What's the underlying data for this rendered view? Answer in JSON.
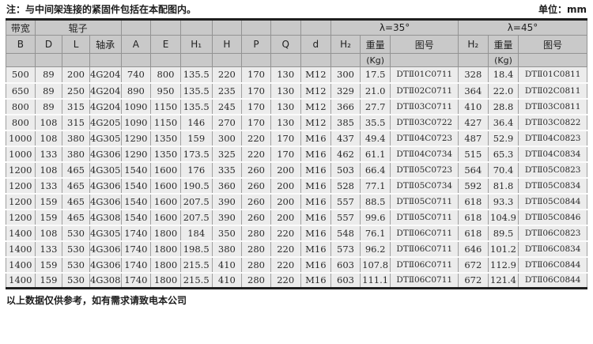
{
  "note_top": "注：与中间架连接的紧固件包括在本配图内。",
  "unit_label": "单位：mm",
  "footer_note": "以上数据仅供参考，如有需求请致电本公司",
  "table": {
    "group_headers": {
      "bandwidth": "带宽",
      "roller": "辊子",
      "lambda35": "λ=35°",
      "lambda45": "λ=45°"
    },
    "columns": [
      "B",
      "D",
      "L",
      "轴承",
      "A",
      "E",
      "H₁",
      "H",
      "P",
      "Q",
      "d",
      "H₂",
      "重量",
      "图号",
      "H₂",
      "重量",
      "图号"
    ],
    "kg_label": "(Kg)",
    "rows": [
      [
        "500",
        "89",
        "200",
        "4G204",
        "740",
        "800",
        "135.5",
        "220",
        "170",
        "130",
        "M12",
        "300",
        "17.5",
        "DTⅡ01C0711",
        "328",
        "18.4",
        "DTⅡ01C0811"
      ],
      [
        "650",
        "89",
        "250",
        "4G204",
        "890",
        "950",
        "135.5",
        "235",
        "170",
        "130",
        "M12",
        "329",
        "21.0",
        "DTⅡ02C0711",
        "364",
        "22.0",
        "DTⅡ02C0811"
      ],
      [
        "800",
        "89",
        "315",
        "4G204",
        "1090",
        "1150",
        "135.5",
        "245",
        "170",
        "130",
        "M12",
        "366",
        "27.7",
        "DTⅡ03C0711",
        "410",
        "28.8",
        "DTⅡ03C0811"
      ],
      [
        "800",
        "108",
        "315",
        "4G205",
        "1090",
        "1150",
        "146",
        "270",
        "170",
        "130",
        "M12",
        "385",
        "35.5",
        "DTⅡ03C0722",
        "427",
        "36.4",
        "DTⅡ03C0822"
      ],
      [
        "1000",
        "108",
        "380",
        "4G305",
        "1290",
        "1350",
        "159",
        "300",
        "220",
        "170",
        "M16",
        "437",
        "49.4",
        "DTⅡ04C0723",
        "487",
        "52.9",
        "DTⅡ04C0823"
      ],
      [
        "1000",
        "133",
        "380",
        "4G306",
        "1290",
        "1350",
        "173.5",
        "325",
        "220",
        "170",
        "M16",
        "462",
        "61.1",
        "DTⅡ04C0734",
        "515",
        "65.3",
        "DTⅡ04C0834"
      ],
      [
        "1200",
        "108",
        "465",
        "4G305",
        "1540",
        "1600",
        "176",
        "335",
        "260",
        "200",
        "M16",
        "503",
        "66.4",
        "DTⅡ05C0723",
        "564",
        "70.4",
        "DTⅡ05C0823"
      ],
      [
        "1200",
        "133",
        "465",
        "4G306",
        "1540",
        "1600",
        "190.5",
        "360",
        "260",
        "200",
        "M16",
        "528",
        "77.1",
        "DTⅡ05C0734",
        "592",
        "81.8",
        "DTⅡ05C0834"
      ],
      [
        "1200",
        "159",
        "465",
        "4G306",
        "1540",
        "1600",
        "207.5",
        "390",
        "260",
        "200",
        "M16",
        "557",
        "88.5",
        "DTⅡ05C0711",
        "618",
        "93.3",
        "DTⅡ05C0844"
      ],
      [
        "1200",
        "159",
        "465",
        "4G308",
        "1540",
        "1600",
        "207.5",
        "390",
        "260",
        "200",
        "M16",
        "557",
        "99.6",
        "DTⅡ05C0711",
        "618",
        "104.9",
        "DTⅡ05C0846"
      ],
      [
        "1400",
        "108",
        "530",
        "4G305",
        "1740",
        "1800",
        "184",
        "350",
        "280",
        "220",
        "M16",
        "548",
        "76.1",
        "DTⅡ06C0711",
        "618",
        "89.5",
        "DTⅡ06C0823"
      ],
      [
        "1400",
        "133",
        "530",
        "4G306",
        "1740",
        "1800",
        "198.5",
        "380",
        "280",
        "220",
        "M16",
        "573",
        "96.2",
        "DTⅡ06C0711",
        "646",
        "101.2",
        "DTⅡ06C0834"
      ],
      [
        "1400",
        "159",
        "530",
        "4G306",
        "1740",
        "1800",
        "215.5",
        "410",
        "280",
        "220",
        "M16",
        "603",
        "107.8",
        "DTⅡ06C0711",
        "672",
        "112.9",
        "DTⅡ06C0844"
      ],
      [
        "1400",
        "159",
        "530",
        "4G308",
        "1740",
        "1800",
        "215.5",
        "410",
        "280",
        "220",
        "M16",
        "603",
        "111.1",
        "DTⅡ06C0711",
        "672",
        "121.4",
        "DTⅡ06C0844"
      ]
    ]
  },
  "colors": {
    "header_bg": "#c9c9c9",
    "cell_bg": "#ececec",
    "border_dark": "#1f1f1f",
    "border_gray": "#9a9a9a"
  }
}
